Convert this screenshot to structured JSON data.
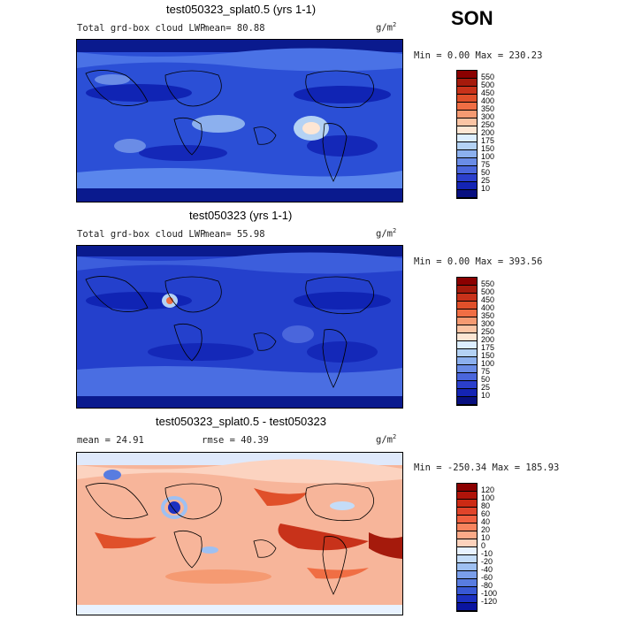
{
  "season": "SON",
  "panels": [
    {
      "title": "test050323_splat0.5 (yrs 1-1)",
      "subtitle": "Total grd-box cloud LWP",
      "stat": "mean=  80.88",
      "units": "g/m",
      "units_exp": "2",
      "minmax": "Min =   0.00 Max = 230.23",
      "colorbar_labels": [
        "550",
        "500",
        "450",
        "400",
        "350",
        "300",
        "250",
        "200",
        "175",
        "150",
        "100",
        "75",
        "50",
        "25",
        "10"
      ],
      "colorbar_colors": [
        "#8b0000",
        "#a51a0c",
        "#c8321a",
        "#e0502a",
        "#f06e44",
        "#f59a72",
        "#fbc4a4",
        "#fde6d4",
        "#ddeeff",
        "#b4d2f4",
        "#8cb0ee",
        "#6a8ce6",
        "#4a66dc",
        "#2b3fcc",
        "#1424b4",
        "#081080"
      ]
    },
    {
      "title": "test050323 (yrs 1-1)",
      "subtitle": "Total grd-box cloud LWP",
      "stat": "mean=  55.98",
      "units": "g/m",
      "units_exp": "2",
      "minmax": "Min =   0.00 Max = 393.56",
      "colorbar_labels": [
        "550",
        "500",
        "450",
        "400",
        "350",
        "300",
        "250",
        "200",
        "175",
        "150",
        "100",
        "75",
        "50",
        "25",
        "10"
      ],
      "colorbar_colors": [
        "#8b0000",
        "#a51a0c",
        "#c8321a",
        "#e0502a",
        "#f06e44",
        "#f59a72",
        "#fbc4a4",
        "#fde6d4",
        "#ddeeff",
        "#b4d2f4",
        "#8cb0ee",
        "#6a8ce6",
        "#4a66dc",
        "#2b3fcc",
        "#1424b4",
        "#081080"
      ]
    },
    {
      "title": "test050323_splat0.5 - test050323",
      "stat_mean": "mean =  24.91",
      "stat_rmse": "rmse =  40.39",
      "units": "g/m",
      "units_exp": "2",
      "minmax": "Min = -250.34 Max = 185.93",
      "colorbar_labels": [
        "120",
        "100",
        "80",
        "60",
        "40",
        "20",
        "10",
        "0",
        "-10",
        "-20",
        "-40",
        "-60",
        "-80",
        "-100",
        "-120"
      ],
      "colorbar_colors": [
        "#8b0000",
        "#b0140a",
        "#cc2a14",
        "#e0442a",
        "#f06040",
        "#f7845e",
        "#fcaa88",
        "#fdd2bc",
        "#e8f2ff",
        "#c4dcf8",
        "#9ec0f2",
        "#7a9eea",
        "#587ce0",
        "#3858d4",
        "#1c30c0",
        "#0a14a0"
      ]
    }
  ]
}
